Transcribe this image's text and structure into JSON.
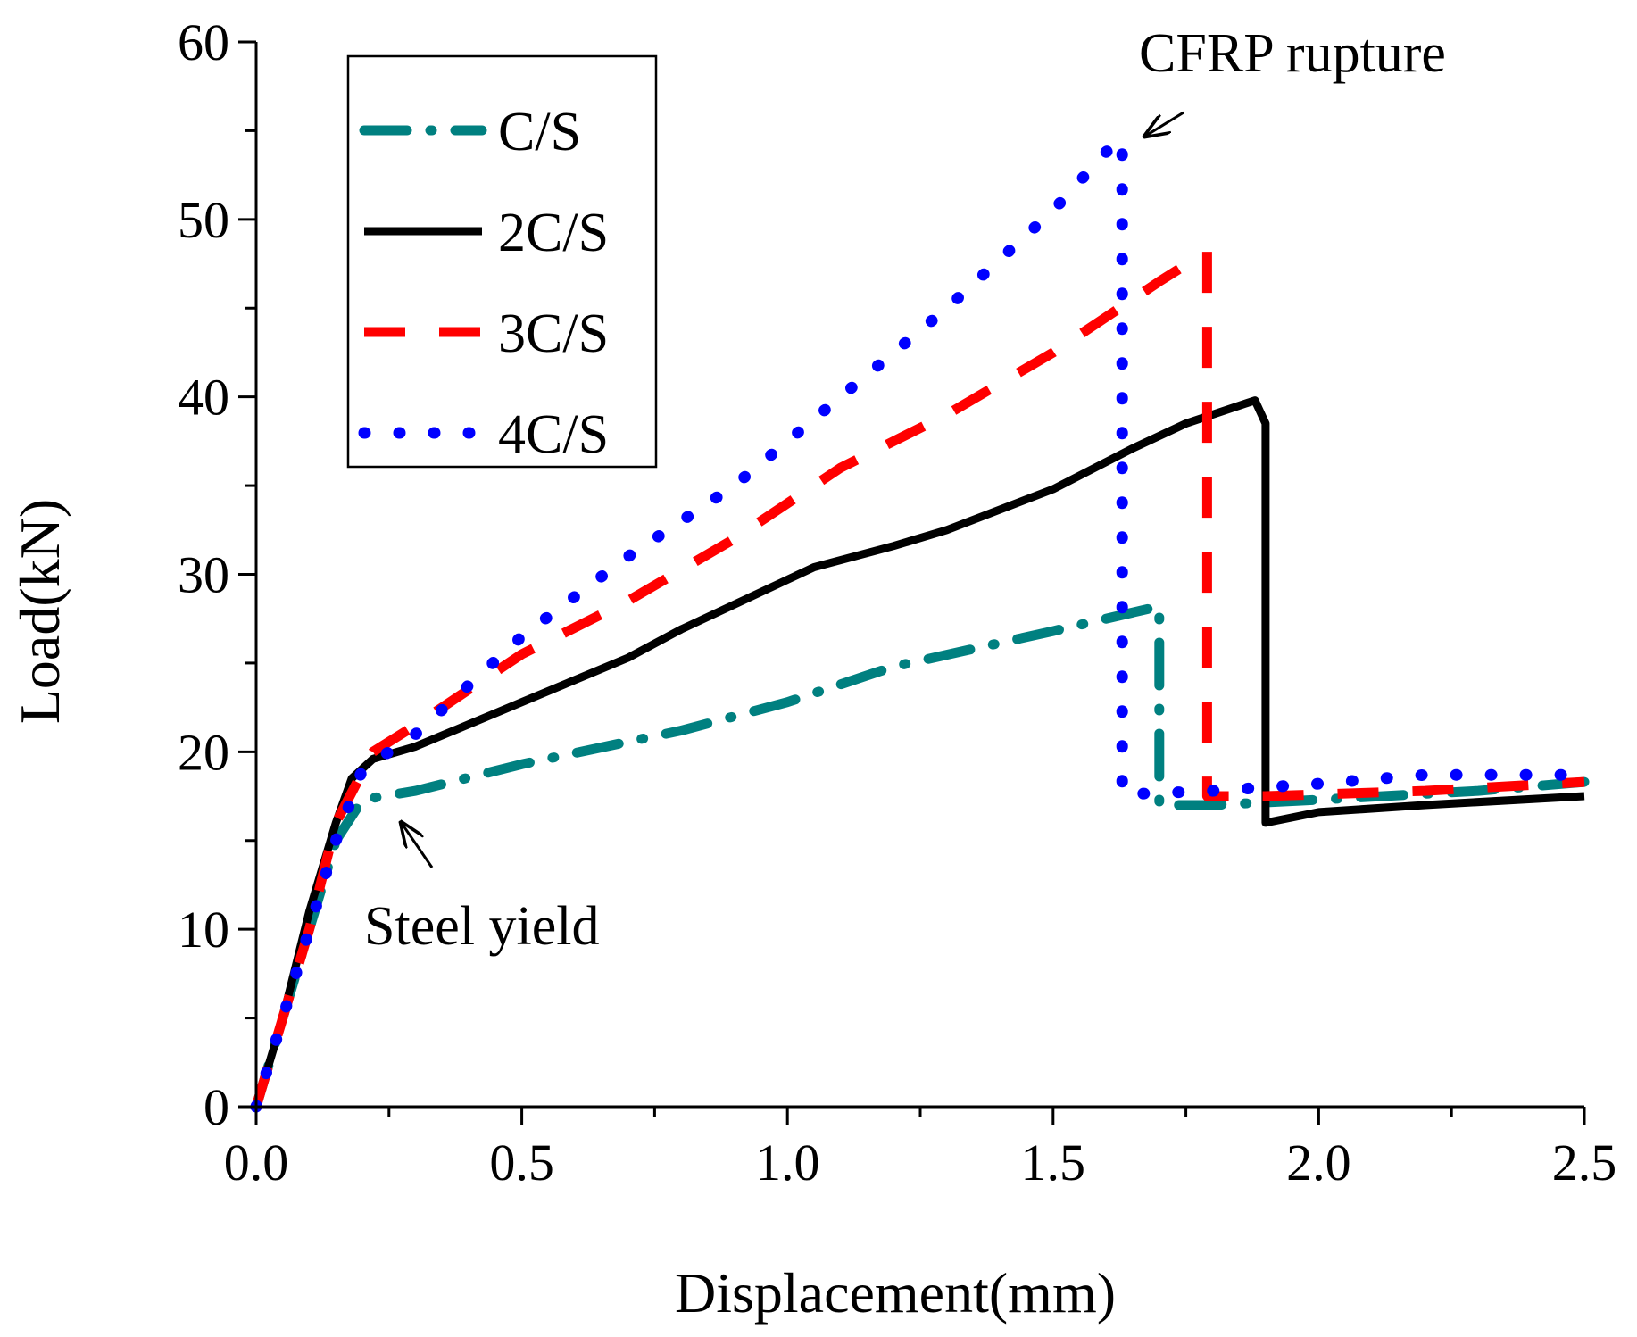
{
  "chart_data": {
    "type": "line",
    "xlabel": "Displacement(mm)",
    "ylabel": "Load(kN)",
    "xlim": [
      0,
      2.5
    ],
    "ylim": [
      0,
      60
    ],
    "x_ticks": [
      "0.0",
      "0.5",
      "1.0",
      "1.5",
      "2.0",
      "2.5"
    ],
    "y_ticks": [
      "0",
      "10",
      "20",
      "30",
      "40",
      "50",
      "60"
    ],
    "grid": false,
    "legend_position": "top-left",
    "series": [
      {
        "name": "C/S",
        "color": "#008080",
        "style": "dash-dot",
        "points": [
          [
            0,
            0
          ],
          [
            0.05,
            5
          ],
          [
            0.1,
            10
          ],
          [
            0.15,
            15
          ],
          [
            0.2,
            17.3
          ],
          [
            0.3,
            17.8
          ],
          [
            0.5,
            19.3
          ],
          [
            0.8,
            21.2
          ],
          [
            1.0,
            22.8
          ],
          [
            1.2,
            24.8
          ],
          [
            1.5,
            26.8
          ],
          [
            1.7,
            28.2
          ],
          [
            1.7,
            17.0
          ],
          [
            1.8,
            17.0
          ],
          [
            2.0,
            17.3
          ],
          [
            2.3,
            17.8
          ],
          [
            2.5,
            18.3
          ]
        ]
      },
      {
        "name": "2C/S",
        "color": "#000000",
        "style": "solid",
        "points": [
          [
            0,
            0
          ],
          [
            0.05,
            5
          ],
          [
            0.1,
            11
          ],
          [
            0.15,
            16
          ],
          [
            0.18,
            18.5
          ],
          [
            0.22,
            19.6
          ],
          [
            0.3,
            20.3
          ],
          [
            0.5,
            22.8
          ],
          [
            0.7,
            25.3
          ],
          [
            0.8,
            26.9
          ],
          [
            0.9,
            28.3
          ],
          [
            1.05,
            30.4
          ],
          [
            1.2,
            31.6
          ],
          [
            1.3,
            32.5
          ],
          [
            1.5,
            34.8
          ],
          [
            1.65,
            37.1
          ],
          [
            1.75,
            38.5
          ],
          [
            1.88,
            39.8
          ],
          [
            1.9,
            38.5
          ],
          [
            1.9,
            16.0
          ],
          [
            2.0,
            16.6
          ],
          [
            2.2,
            17.0
          ],
          [
            2.5,
            17.5
          ]
        ]
      },
      {
        "name": "3C/S",
        "color": "#ff0000",
        "style": "dash",
        "points": [
          [
            0,
            0
          ],
          [
            0.05,
            5
          ],
          [
            0.1,
            10
          ],
          [
            0.15,
            16
          ],
          [
            0.22,
            20
          ],
          [
            0.3,
            21.5
          ],
          [
            0.5,
            25.5
          ],
          [
            0.7,
            28.5
          ],
          [
            0.9,
            32
          ],
          [
            1.1,
            36
          ],
          [
            1.3,
            39
          ],
          [
            1.5,
            42.5
          ],
          [
            1.7,
            46.5
          ],
          [
            1.79,
            48.2
          ],
          [
            1.79,
            17.5
          ],
          [
            1.9,
            17.5
          ],
          [
            2.2,
            17.8
          ],
          [
            2.5,
            18.3
          ]
        ]
      },
      {
        "name": "4C/S",
        "color": "#0000ff",
        "style": "dot",
        "points": [
          [
            0,
            0
          ],
          [
            0.05,
            5
          ],
          [
            0.1,
            10
          ],
          [
            0.15,
            15
          ],
          [
            0.2,
            19
          ],
          [
            0.3,
            21
          ],
          [
            0.5,
            26.5
          ],
          [
            0.7,
            31
          ],
          [
            0.9,
            35
          ],
          [
            1.1,
            40
          ],
          [
            1.3,
            45
          ],
          [
            1.5,
            50.5
          ],
          [
            1.6,
            53.8
          ],
          [
            1.63,
            54.5
          ],
          [
            1.63,
            17.6
          ],
          [
            1.8,
            17.8
          ],
          [
            2.0,
            18.2
          ],
          [
            2.2,
            18.7
          ],
          [
            2.5,
            18.7
          ]
        ]
      }
    ],
    "annotations": [
      {
        "text": "CFRP rupture",
        "point": [
          1.65,
          55.0
        ]
      },
      {
        "text": "Steel yield",
        "point": [
          0.27,
          16.5
        ]
      }
    ]
  }
}
